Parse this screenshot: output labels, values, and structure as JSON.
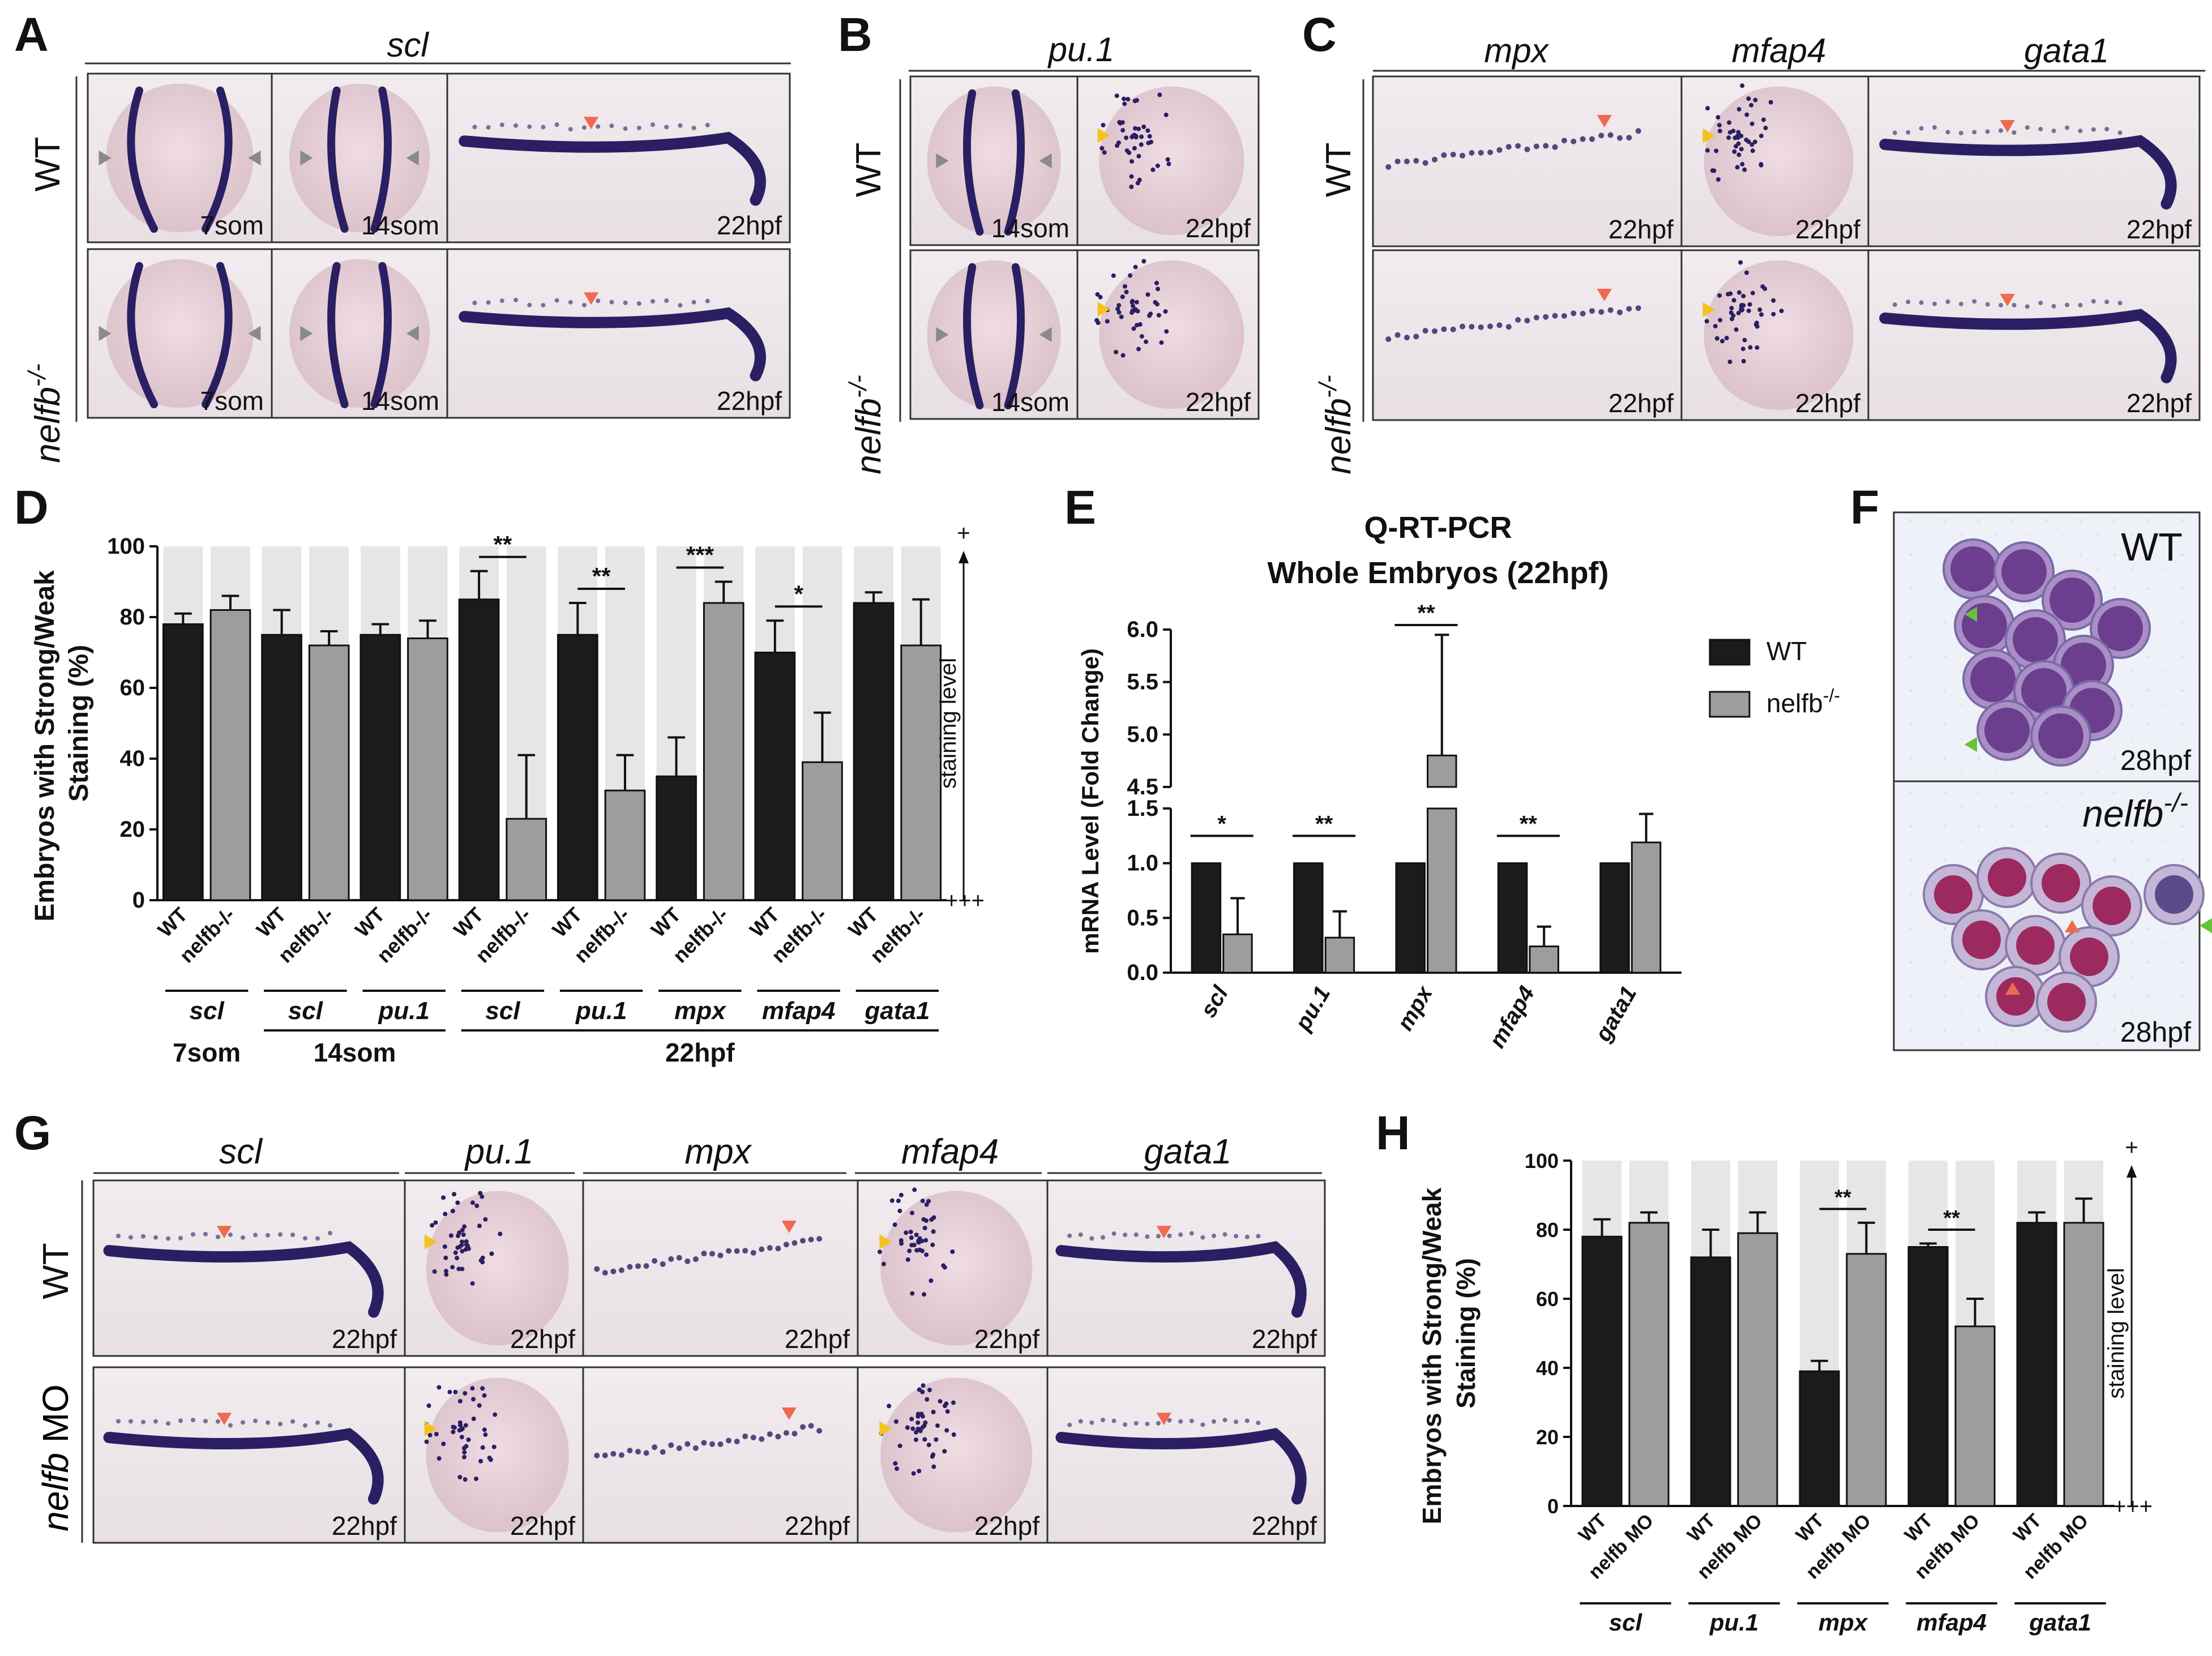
{
  "panel_letters": {
    "A": "A",
    "B": "B",
    "C": "C",
    "D": "D",
    "E": "E",
    "F": "F",
    "G": "G",
    "H": "H"
  },
  "row_labels": {
    "wt": "WT",
    "nelfb_base": "nelfb",
    "nelfb_sup": "-/-",
    "nelfb_mo_italic": "nelfb",
    "nelfb_mo_tail": " MO"
  },
  "colors": {
    "bar_wt": "#1b1b1b",
    "bar_mut": "#9d9d9d",
    "bg_band": "#e6e6e6",
    "arrow_red": "#f06a50",
    "arrow_yellow": "#f5c21c",
    "arrow_grey": "#8a8a8a",
    "arrow_green": "#66c23a",
    "embryo": "#e6cfd6",
    "stain": "#2a1f63"
  },
  "panelA": {
    "gene": "scl",
    "cells": [
      {
        "stage": "7som",
        "shape": "dorsal7",
        "arrows": "grey"
      },
      {
        "stage": "14som",
        "shape": "dorsal14",
        "arrows": "grey"
      },
      {
        "stage": "22hpf",
        "shape": "trunk",
        "arrows": "red"
      }
    ]
  },
  "panelB": {
    "gene": "pu.1",
    "cells": [
      {
        "stage": "14som",
        "shape": "dorsal14",
        "arrows": "grey"
      },
      {
        "stage": "22hpf",
        "shape": "head",
        "arrows": "yellow"
      }
    ]
  },
  "panelC": {
    "genes": [
      "mpx",
      "mfap4",
      "gata1"
    ],
    "cells": [
      {
        "stage": "22hpf",
        "shape": "mpx",
        "arrows": "red"
      },
      {
        "stage": "22hpf",
        "shape": "head",
        "arrows": "yellow"
      },
      {
        "stage": "22hpf",
        "shape": "trunk",
        "arrows": "red"
      }
    ]
  },
  "panelF": {
    "top_label": "WT",
    "top_stage": "28hpf",
    "bottom_label_base": "nelfb",
    "bottom_label_sup": "-/-",
    "bottom_stage": "28hpf"
  },
  "panelG": {
    "genes": [
      "scl",
      "pu.1",
      "mpx",
      "mfap4",
      "gata1"
    ],
    "stage": "22hpf"
  },
  "chart_data": [
    {
      "id": "D",
      "type": "bar",
      "ylabel_line1": "Embryos with Strong/Weak",
      "ylabel_line2": "Staining (%)",
      "ylim": [
        0,
        100
      ],
      "yticks": [
        0,
        20,
        40,
        60,
        80,
        100
      ],
      "right_axis_label": "staining level",
      "right_top": "+",
      "right_bottom": "+++",
      "groups": [
        {
          "gene": "scl",
          "wt": 78,
          "wt_err": 3,
          "mut": 82,
          "mut_err": 4
        },
        {
          "gene": "scl",
          "wt": 75,
          "wt_err": 7,
          "mut": 72,
          "mut_err": 4
        },
        {
          "gene": "pu.1",
          "wt": 75,
          "wt_err": 3,
          "mut": 74,
          "mut_err": 5
        },
        {
          "gene": "scl",
          "wt": 85,
          "wt_err": 8,
          "mut": 23,
          "mut_err": 18
        },
        {
          "gene": "pu.1",
          "wt": 75,
          "wt_err": 9,
          "mut": 31,
          "mut_err": 10
        },
        {
          "gene": "mpx",
          "wt": 35,
          "wt_err": 11,
          "mut": 84,
          "mut_err": 6
        },
        {
          "gene": "mfap4",
          "wt": 70,
          "wt_err": 9,
          "mut": 39,
          "mut_err": 14
        },
        {
          "gene": "gata1",
          "wt": 84,
          "wt_err": 3,
          "mut": 72,
          "mut_err": 13
        }
      ],
      "bar_labels": [
        "WT",
        "nelfb-/-"
      ],
      "significance": [
        {
          "group": 3,
          "label": "**"
        },
        {
          "group": 4,
          "label": "**"
        },
        {
          "group": 5,
          "label": "***"
        },
        {
          "group": 6,
          "label": "*"
        }
      ],
      "stage_labels": [
        {
          "label": "7som",
          "from": 0,
          "to": 0
        },
        {
          "label": "14som",
          "from": 1,
          "to": 2
        },
        {
          "label": "22hpf",
          "from": 3,
          "to": 7
        }
      ]
    },
    {
      "id": "E",
      "type": "bar",
      "title_line1": "Q-RT-PCR",
      "title_line2": "Whole Embryos (22hpf)",
      "ylabel": "mRNA Level (Fold Change)",
      "ylim_lower": [
        0,
        1.5
      ],
      "ylim_upper": [
        4.5,
        6.0
      ],
      "yticks_lower": [
        "0.0",
        "0.5",
        "1.0",
        "1.5"
      ],
      "yticks_upper": [
        "4.5",
        "5.0",
        "5.5",
        "6.0"
      ],
      "categories": [
        "scl",
        "pu.1",
        "mpx",
        "mfap4",
        "gata1"
      ],
      "series": [
        {
          "name": "WT",
          "values": [
            1.0,
            1.0,
            1.0,
            1.0,
            1.0
          ],
          "errors": [
            0,
            0,
            0,
            0,
            0
          ]
        },
        {
          "name": "nelfb-/-",
          "values": [
            0.35,
            0.32,
            4.8,
            0.24,
            1.19
          ],
          "errors": [
            0.33,
            0.24,
            1.15,
            0.18,
            0.26
          ]
        }
      ],
      "legend": [
        {
          "name": "WT"
        },
        {
          "name_base": "nelfb",
          "name_sup": "-/-"
        }
      ],
      "significance": [
        {
          "group": 0,
          "label": "*"
        },
        {
          "group": 1,
          "label": "**"
        },
        {
          "group": 2,
          "label": "**"
        },
        {
          "group": 3,
          "label": "**"
        }
      ]
    },
    {
      "id": "H",
      "type": "bar",
      "ylabel_line1": "Embryos with Strong/Weak",
      "ylabel_line2": "Staining (%)",
      "ylim": [
        0,
        100
      ],
      "yticks": [
        0,
        20,
        40,
        60,
        80,
        100
      ],
      "right_axis_label": "staining level",
      "right_top": "+",
      "right_bottom": "+++",
      "groups": [
        {
          "gene": "scl",
          "wt": 78,
          "wt_err": 5,
          "mut": 82,
          "mut_err": 3
        },
        {
          "gene": "pu.1",
          "wt": 72,
          "wt_err": 8,
          "mut": 79,
          "mut_err": 6
        },
        {
          "gene": "mpx",
          "wt": 39,
          "wt_err": 3,
          "mut": 73,
          "mut_err": 9
        },
        {
          "gene": "mfap4",
          "wt": 75,
          "wt_err": 1,
          "mut": 52,
          "mut_err": 8
        },
        {
          "gene": "gata1",
          "wt": 82,
          "wt_err": 3,
          "mut": 82,
          "mut_err": 7
        }
      ],
      "bar_labels": [
        "WT",
        "nelfb MO"
      ],
      "significance": [
        {
          "group": 2,
          "label": "**"
        },
        {
          "group": 3,
          "label": "**"
        }
      ]
    }
  ]
}
